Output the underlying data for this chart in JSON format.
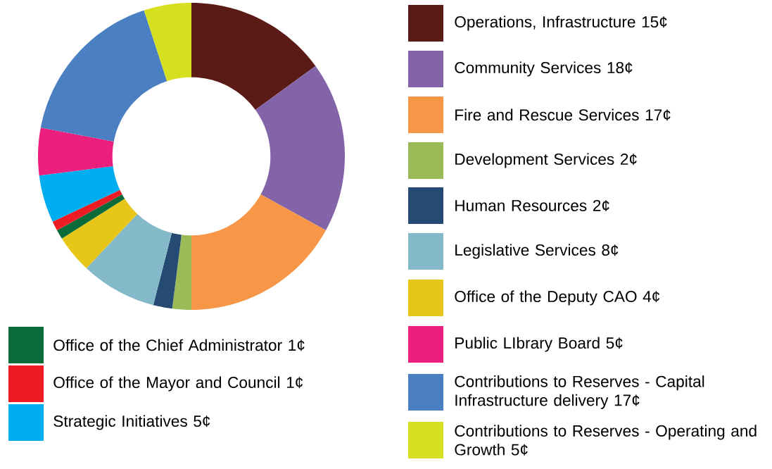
{
  "chart_data": {
    "type": "donut",
    "categories": [
      "Operations, Infrastructure",
      "Community Services",
      "Fire and Rescue Services",
      "Development Services",
      "Human Resources",
      "Legislative Services",
      "Office of the Deputy CAO",
      "Office of the Chief Administrator",
      "Office of the Mayor and Council",
      "Strategic Initiatives",
      "Public LIbrary Board",
      "Contributions to Reserves - Capital Infrastructure delivery",
      "Contributions to Reserves - Operating and Growth"
    ],
    "values": [
      15,
      18,
      17,
      2,
      2,
      8,
      4,
      1,
      1,
      5,
      5,
      17,
      5
    ],
    "value_labels": [
      "15¢",
      "18¢",
      "17¢",
      "2¢",
      "2¢",
      "8¢",
      "4¢",
      "1¢",
      "1¢",
      "5¢",
      "5¢",
      "17¢",
      "5¢"
    ],
    "colors": [
      "#5a1a16",
      "#8464a8",
      "#f79646",
      "#9bbb59",
      "#254a74",
      "#84b9c9",
      "#e6c619",
      "#0b6b3a",
      "#ed1c24",
      "#00aeef",
      "#ec1f7e",
      "#4a7fc1",
      "#d7e020"
    ],
    "legend": "right"
  }
}
